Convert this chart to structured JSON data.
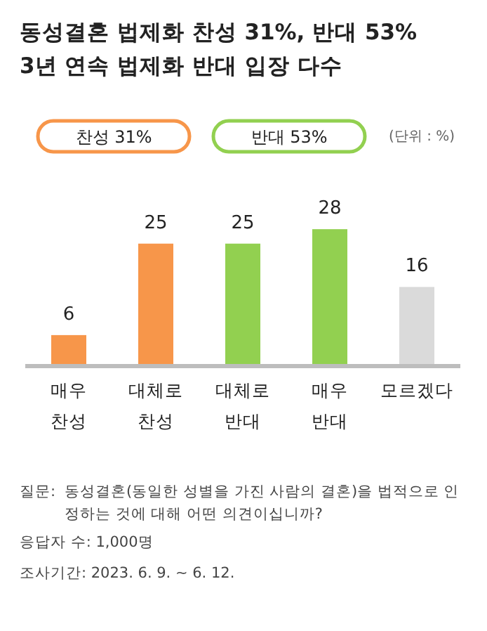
{
  "chart_data": {
    "type": "bar",
    "title": "동성결혼 법제화 찬성 31%, 반대 53%",
    "subtitle": "3년 연속 법제화 반대 입장 다수",
    "categories": [
      "매우 찬성",
      "대체로 찬성",
      "대체로 반대",
      "매우 반대",
      "모르겠다"
    ],
    "series": [
      {
        "name": "찬성 31%",
        "color": "#f7964a",
        "values": [
          6,
          25,
          null,
          null,
          null
        ]
      },
      {
        "name": "반대 53%",
        "color": "#92d050",
        "values": [
          null,
          null,
          25,
          28,
          null
        ]
      },
      {
        "color": "#dadada",
        "values": [
          null,
          null,
          null,
          null,
          16
        ]
      }
    ],
    "data_labels": true,
    "legend": "top left",
    "annotations": [
      "(단위 : %)",
      "질문:",
      "동성결혼(동일한 성별을 가진 사람의 결혼)을 법적으로 인정하는 것에 대해 어떤 의견이십니까?",
      "응답자 수: 1,000명",
      "조사기간: 2023. 6. 9. ~ 6. 12."
    ]
  }
}
